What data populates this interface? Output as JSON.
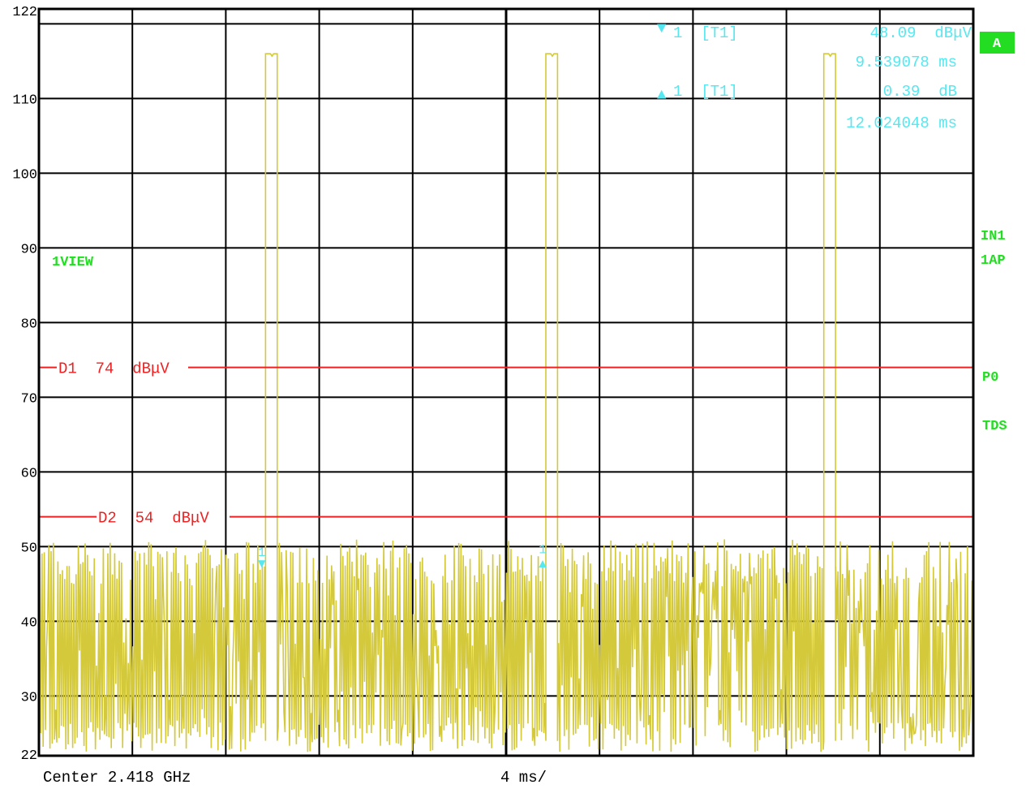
{
  "chart_data": {
    "type": "line",
    "title": "",
    "xlabel": "",
    "ylabel": "",
    "ylim": [
      22,
      122
    ],
    "xlim_ms": [
      0,
      40
    ],
    "grid": true,
    "y_ticks": [
      "122",
      "110",
      "100",
      "90",
      "80",
      "70",
      "60",
      "50",
      "40",
      "30",
      "22"
    ],
    "y_tick_values": [
      122,
      110,
      100,
      90,
      80,
      70,
      60,
      50,
      40,
      30,
      22
    ],
    "display_lines": [
      {
        "name": "D1",
        "value": 74,
        "label": "D1  74  dBμV",
        "color": "#ee2222"
      },
      {
        "name": "D2",
        "value": 54,
        "label": "D2  54  dBμV",
        "color": "#ee2222"
      }
    ],
    "series": [
      {
        "color": "#d4c93a",
        "noise_floor_range": [
          22,
          50
        ],
        "pulses": [
          {
            "start_ms": 9.7,
            "end_ms": 10.2,
            "level": 116
          },
          {
            "start_ms": 21.7,
            "end_ms": 22.2,
            "level": 116
          },
          {
            "start_ms": 33.6,
            "end_ms": 34.1,
            "level": 116
          }
        ]
      }
    ],
    "markers": [
      {
        "symbol": "▼",
        "label": "1",
        "x_ms": 9.539078,
        "y": 48.09
      },
      {
        "symbol": "▲",
        "label": "1",
        "x_ms": 21.563126,
        "y": 48.48
      }
    ],
    "marker_readout": [
      {
        "line1": "1  [T1]",
        "value": "48.09  dBμV",
        "time": "9.539078 ms"
      },
      {
        "line1": "1  [T1]",
        "value": "0.39  dB",
        "time": "12.024048 ms"
      }
    ]
  },
  "footer": {
    "center": "Center 2.418 GHz",
    "span": "4 ms/"
  },
  "right_labels": {
    "trace_box": "A",
    "in": "IN1",
    "ap": "1AP",
    "p": "P0",
    "tds": "TDS"
  },
  "left_labels": {
    "view": "1VIEW"
  },
  "colors": {
    "grid": "#000000",
    "trace": "#d4c93a",
    "display_line": "#ee2222",
    "marker": "#55e8f0",
    "status": "#22dd22",
    "background": "#ffffff"
  }
}
